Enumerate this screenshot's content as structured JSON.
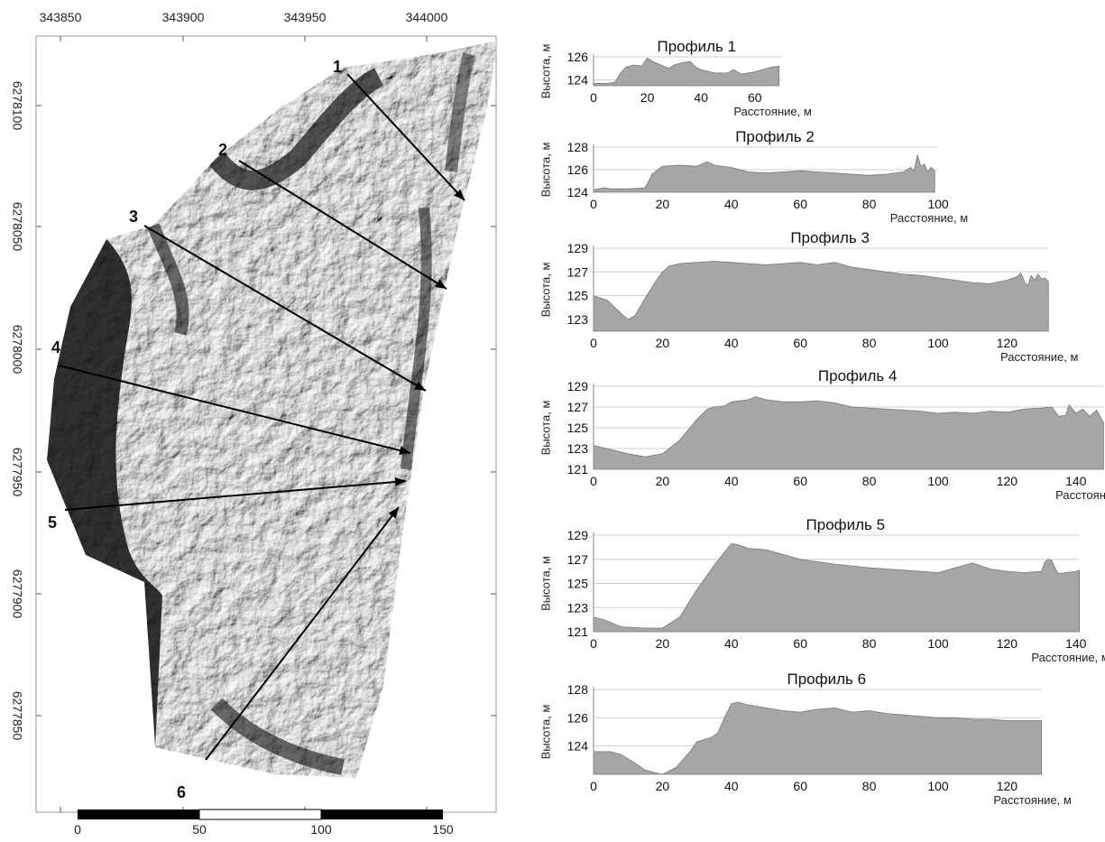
{
  "map": {
    "x_ticks": [
      "343850",
      "343900",
      "343950",
      "344000"
    ],
    "y_ticks": [
      "6278100",
      "6278050",
      "6278000",
      "6277950",
      "6277900",
      "6277850"
    ],
    "scale_bar": {
      "labels": [
        "0",
        "50",
        "100",
        "150"
      ]
    },
    "profile_lines": [
      {
        "label": "1"
      },
      {
        "label": "2"
      },
      {
        "label": "3"
      },
      {
        "label": "4"
      },
      {
        "label": "5"
      },
      {
        "label": "6"
      }
    ]
  },
  "chart_data": [
    {
      "type": "area",
      "title": "Профиль 1",
      "xlabel": "Расстояние, м",
      "ylabel": "Высота, м",
      "xlim": [
        0,
        70
      ],
      "ylim": [
        123.5,
        126
      ],
      "x_ticks": [
        0,
        20,
        40,
        60
      ],
      "y_ticks": [
        124,
        126
      ],
      "x": [
        0,
        5,
        8,
        10,
        12,
        15,
        18,
        20,
        22,
        25,
        28,
        30,
        33,
        36,
        38,
        40,
        45,
        50,
        52,
        55,
        60,
        63,
        66,
        69
      ],
      "y": [
        123.7,
        123.7,
        123.8,
        124.6,
        125.1,
        125.3,
        125.2,
        125.9,
        125.6,
        125.3,
        125.0,
        125.3,
        125.5,
        125.6,
        125.1,
        124.9,
        124.6,
        124.6,
        124.9,
        124.5,
        124.7,
        124.9,
        125.1,
        125.2
      ]
    },
    {
      "type": "area",
      "title": "Профиль 2",
      "xlabel": "Расстояние, м",
      "ylabel": "Высота, м",
      "xlim": [
        0,
        100
      ],
      "ylim": [
        124,
        128
      ],
      "x_ticks": [
        0,
        20,
        40,
        60,
        80,
        100
      ],
      "y_ticks": [
        124,
        126,
        128
      ],
      "x": [
        0,
        3,
        5,
        10,
        15,
        17,
        20,
        25,
        30,
        33,
        35,
        40,
        45,
        50,
        55,
        60,
        65,
        70,
        75,
        80,
        85,
        90,
        92,
        93,
        94,
        95,
        96,
        97,
        98,
        99
      ],
      "y": [
        124.2,
        124.4,
        124.3,
        124.3,
        124.4,
        125.6,
        126.3,
        126.4,
        126.3,
        126.7,
        126.4,
        126.2,
        125.8,
        125.7,
        125.8,
        125.9,
        125.8,
        125.7,
        125.6,
        125.5,
        125.6,
        125.8,
        126.2,
        125.9,
        127.3,
        126.3,
        126.5,
        125.8,
        126.2,
        125.9
      ]
    },
    {
      "type": "area",
      "title": "Профиль 3",
      "xlabel": "Расстояние, м",
      "ylabel": "Высота, м",
      "xlim": [
        0,
        132
      ],
      "ylim": [
        122,
        129
      ],
      "x_ticks": [
        0,
        20,
        40,
        60,
        80,
        100,
        120
      ],
      "y_ticks": [
        123,
        125,
        127,
        129
      ],
      "x": [
        0,
        4,
        8,
        10,
        12,
        15,
        18,
        20,
        22,
        25,
        30,
        35,
        40,
        45,
        50,
        55,
        60,
        65,
        70,
        75,
        80,
        85,
        90,
        95,
        100,
        105,
        110,
        115,
        120,
        123,
        124,
        125,
        126,
        127,
        128,
        129,
        130,
        131,
        132
      ],
      "y": [
        125.0,
        124.6,
        123.5,
        123.0,
        123.3,
        124.8,
        126.2,
        127.0,
        127.5,
        127.7,
        127.8,
        127.9,
        127.8,
        127.7,
        127.6,
        127.7,
        127.8,
        127.6,
        127.8,
        127.4,
        127.2,
        127.0,
        126.8,
        126.7,
        126.5,
        126.3,
        126.1,
        126.0,
        126.3,
        126.6,
        126.9,
        126.2,
        125.8,
        126.7,
        126.3,
        126.8,
        126.4,
        126.5,
        126.2
      ]
    },
    {
      "type": "area",
      "title": "Профиль 4",
      "xlabel": "Расстояние, м",
      "ylabel": "Высота, м",
      "xlim": [
        0,
        148
      ],
      "ylim": [
        121,
        129
      ],
      "x_ticks": [
        0,
        20,
        40,
        60,
        80,
        100,
        120,
        140
      ],
      "y_ticks": [
        121,
        123,
        125,
        127,
        129
      ],
      "x": [
        0,
        5,
        10,
        15,
        20,
        25,
        30,
        33,
        35,
        38,
        40,
        45,
        47,
        50,
        55,
        60,
        65,
        70,
        75,
        80,
        85,
        90,
        95,
        100,
        105,
        110,
        115,
        120,
        125,
        130,
        133,
        135,
        137,
        138,
        140,
        142,
        144,
        146,
        148
      ],
      "y": [
        123.3,
        122.9,
        122.5,
        122.2,
        122.5,
        123.8,
        125.8,
        126.8,
        127.0,
        127.1,
        127.5,
        127.7,
        128.0,
        127.7,
        127.5,
        127.5,
        127.6,
        127.4,
        127.0,
        126.9,
        126.8,
        126.7,
        126.6,
        126.4,
        126.5,
        126.4,
        126.6,
        126.5,
        126.8,
        126.9,
        127.0,
        126.1,
        126.2,
        127.2,
        126.4,
        126.8,
        126.1,
        126.7,
        125.5
      ]
    },
    {
      "type": "area",
      "title": "Профиль 5",
      "xlabel": "Расстояние, м",
      "ylabel": "Высота, м",
      "xlim": [
        0,
        141
      ],
      "ylim": [
        121,
        129
      ],
      "x_ticks": [
        0,
        20,
        40,
        60,
        80,
        100,
        120,
        140
      ],
      "y_ticks": [
        121,
        123,
        125,
        127,
        129
      ],
      "x": [
        0,
        3,
        8,
        15,
        20,
        25,
        30,
        35,
        38,
        40,
        42,
        45,
        50,
        55,
        60,
        70,
        80,
        90,
        100,
        105,
        110,
        115,
        120,
        125,
        130,
        131,
        132,
        133,
        134,
        135,
        137,
        140,
        141
      ],
      "y": [
        122.2,
        122.0,
        121.4,
        121.3,
        121.3,
        122.2,
        124.5,
        126.5,
        127.6,
        128.3,
        128.2,
        127.9,
        127.8,
        127.4,
        127.0,
        126.6,
        126.3,
        126.1,
        125.9,
        126.3,
        126.7,
        126.2,
        126.0,
        125.9,
        126.0,
        126.8,
        127.0,
        126.9,
        126.2,
        125.8,
        125.9,
        126.0,
        126.1
      ]
    },
    {
      "type": "area",
      "title": "Профиль 6",
      "xlabel": "Расстояние, м",
      "ylabel": "Высота, м",
      "xlim": [
        0,
        130
      ],
      "ylim": [
        122,
        128
      ],
      "x_ticks": [
        0,
        20,
        40,
        60,
        80,
        100,
        120
      ],
      "y_ticks": [
        124,
        126,
        128
      ],
      "x": [
        0,
        5,
        8,
        12,
        15,
        18,
        20,
        24,
        28,
        30,
        34,
        36,
        38,
        40,
        42,
        45,
        50,
        55,
        60,
        65,
        70,
        75,
        80,
        85,
        90,
        95,
        100,
        105,
        110,
        115,
        120,
        125,
        130
      ],
      "y": [
        123.6,
        123.6,
        123.4,
        122.8,
        122.3,
        122.1,
        122.0,
        122.5,
        123.6,
        124.3,
        124.6,
        124.9,
        126.0,
        127.0,
        127.1,
        126.9,
        126.7,
        126.5,
        126.4,
        126.6,
        126.7,
        126.4,
        126.5,
        126.3,
        126.2,
        126.1,
        126.0,
        126.0,
        125.9,
        125.9,
        125.8,
        125.8,
        125.8
      ]
    }
  ]
}
